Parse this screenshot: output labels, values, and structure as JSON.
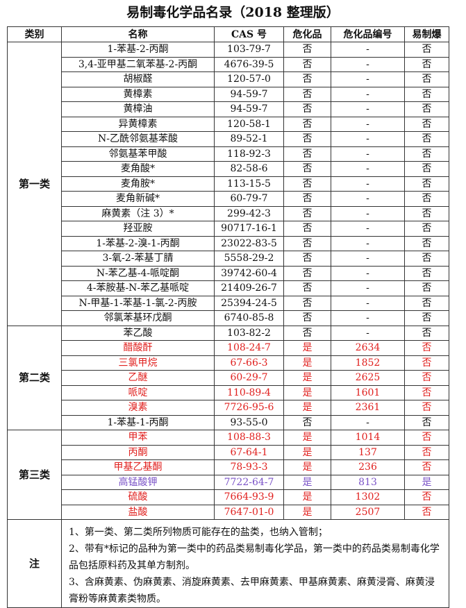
{
  "title": "易制毒化学品名录（2018 整理版）",
  "table": {
    "header": [
      "类别",
      "名称",
      "CAS 号",
      "危化品",
      "危化品编号",
      "易制爆"
    ],
    "groups": [
      {
        "category": "第一类",
        "rows": [
          {
            "cells": [
              "1-苯基-2-丙酮",
              "103-79-7",
              "否",
              "-",
              "否"
            ]
          },
          {
            "cells": [
              "3,4-亚甲基二氧苯基-2-丙酮",
              "4676-39-5",
              "否",
              "-",
              "否"
            ]
          },
          {
            "cells": [
              "胡椒醛",
              "120-57-0",
              "否",
              "-",
              "否"
            ]
          },
          {
            "cells": [
              "黄樟素",
              "94-59-7",
              "否",
              "-",
              "否"
            ]
          },
          {
            "cells": [
              "黄樟油",
              "94-59-7",
              "否",
              "-",
              "否"
            ]
          },
          {
            "cells": [
              "异黄樟素",
              "120-58-1",
              "否",
              "-",
              "否"
            ]
          },
          {
            "cells": [
              "N-乙酰邻氨基苯酸",
              "89-52-1",
              "否",
              "-",
              "否"
            ]
          },
          {
            "cells": [
              "邻氨基苯甲酸",
              "118-92-3",
              "否",
              "-",
              "否"
            ]
          },
          {
            "cells": [
              "麦角酸*",
              "82-58-6",
              "否",
              "-",
              "否"
            ]
          },
          {
            "cells": [
              "麦角胺*",
              "113-15-5",
              "否",
              "-",
              "否"
            ]
          },
          {
            "cells": [
              "麦角新碱*",
              "60-79-7",
              "否",
              "-",
              "否"
            ]
          },
          {
            "cells": [
              "麻黄素（注 3）*",
              "299-42-3",
              "否",
              "-",
              "否"
            ]
          },
          {
            "cells": [
              "羟亚胺",
              "90717-16-1",
              "否",
              "-",
              "否"
            ]
          },
          {
            "cells": [
              "1-苯基-2-溴-1-丙酮",
              "23022-83-5",
              "否",
              "-",
              "否"
            ]
          },
          {
            "cells": [
              "3-氧-2-苯基丁腈",
              "5558-29-2",
              "否",
              "-",
              "否"
            ]
          },
          {
            "cells": [
              "N-苯乙基-4-哌啶酮",
              "39742-60-4",
              "否",
              "-",
              "否"
            ]
          },
          {
            "cells": [
              "4-苯胺基-N-苯乙基哌啶",
              "21409-26-7",
              "否",
              "-",
              "否"
            ]
          },
          {
            "cells": [
              "N-甲基-1-苯基-1-氯-2-丙胺",
              "25394-24-5",
              "否",
              "-",
              "否"
            ]
          },
          {
            "cells": [
              "邻氯苯基环戊酮",
              "6740-85-8",
              "否",
              "-",
              "否"
            ]
          }
        ]
      },
      {
        "category": "第二类",
        "rows": [
          {
            "cells": [
              "苯乙酸",
              "103-82-2",
              "否",
              "-",
              "否"
            ]
          },
          {
            "cells": [
              "醋酸酐",
              "108-24-7",
              "是",
              "2634",
              "否"
            ],
            "color": "#e0201e"
          },
          {
            "cells": [
              "三氯甲烷",
              "67-66-3",
              "是",
              "1852",
              "否"
            ],
            "color": "#e0201e"
          },
          {
            "cells": [
              "乙醚",
              "60-29-7",
              "是",
              "2625",
              "否"
            ],
            "color": "#e0201e"
          },
          {
            "cells": [
              "哌啶",
              "110-89-4",
              "是",
              "1601",
              "否"
            ],
            "color": "#e0201e"
          },
          {
            "cells": [
              "溴素",
              "7726-95-6",
              "是",
              "2361",
              "否"
            ],
            "color": "#e0201e"
          },
          {
            "cells": [
              "1-苯基-1-丙酮",
              "93-55-0",
              "否",
              "-",
              "否"
            ]
          }
        ]
      },
      {
        "category": "第三类",
        "rows": [
          {
            "cells": [
              "甲苯",
              "108-88-3",
              "是",
              "1014",
              "否"
            ],
            "color": "#e0201e"
          },
          {
            "cells": [
              "丙酮",
              "67-64-1",
              "是",
              "137",
              "否"
            ],
            "color": "#e0201e"
          },
          {
            "cells": [
              "甲基乙基酮",
              "78-93-3",
              "是",
              "236",
              "否"
            ],
            "color": "#e0201e"
          },
          {
            "cells": [
              "高锰酸钾",
              "7722-64-7",
              "是",
              "813",
              "是"
            ],
            "color": "#7a52c7"
          },
          {
            "cells": [
              "硫酸",
              "7664-93-9",
              "是",
              "1302",
              "否"
            ],
            "color": "#e0201e"
          },
          {
            "cells": [
              "盐酸",
              "7647-01-0",
              "是",
              "2507",
              "否"
            ],
            "color": "#e0201e"
          }
        ]
      }
    ]
  },
  "notes": {
    "label": "注",
    "items": [
      "1、第一类、第二类所列物质可能存在的盐类，也纳入管制；",
      "2、带有*标记的品种为第一类中的药品类易制毒化学品，第一类中的药品类易制毒化学品包括原料药及其单方制剂。",
      "3、含麻黄素、伪麻黄素、消旋麻黄素、去甲麻黄素、甲基麻黄素、麻黄浸膏、麻黄浸膏粉等麻黄素类物质。"
    ]
  }
}
